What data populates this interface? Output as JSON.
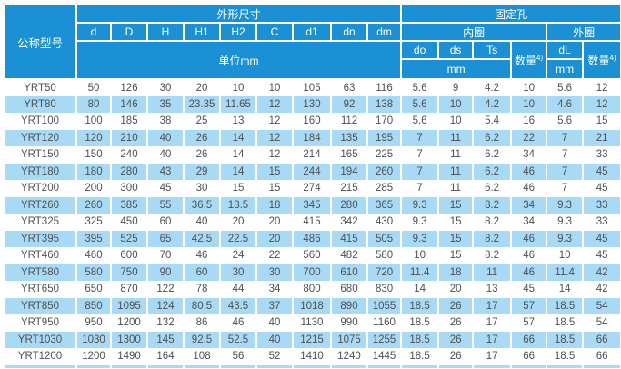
{
  "colors": {
    "header_blue": "#1b90d5",
    "stripe_blue": "#a8daf5",
    "text_dark": "#4f5052"
  },
  "table": {
    "header": {
      "model_col": "公称型号",
      "group_outer_dim": "外形尺寸",
      "group_fixing_holes": "固定孔",
      "dim_cols": [
        "d",
        "D",
        "H",
        "H1",
        "H2",
        "C",
        "d1",
        "dn",
        "dm"
      ],
      "unit_label": "单位mm",
      "inner_ring": "内圈",
      "outer_ring": "外圈",
      "col_do": "do",
      "col_ds": "ds",
      "col_ts": "Ts",
      "col_dl": "dL",
      "qty_label": "数量",
      "qty_sup": "4)",
      "mm_label_inner": "mm",
      "mm_label_outer": "mm"
    },
    "rows": [
      [
        "YRT50",
        50,
        126,
        30,
        20,
        10,
        10,
        105,
        63,
        116,
        5.6,
        9,
        4.2,
        10,
        5.6,
        12
      ],
      [
        "YRT80",
        80,
        146,
        35,
        23.35,
        11.65,
        12,
        130,
        92,
        138,
        5.6,
        10,
        4.2,
        10,
        4.6,
        12
      ],
      [
        "YRT100",
        100,
        185,
        38,
        25,
        13,
        12,
        160,
        112,
        170,
        5.6,
        10,
        5.4,
        16,
        5.6,
        15
      ],
      [
        "YRT120",
        120,
        210,
        40,
        26,
        14,
        12,
        184,
        135,
        195,
        7,
        11,
        6.2,
        22,
        7,
        21
      ],
      [
        "YRT150",
        150,
        240,
        40,
        26,
        14,
        12,
        214,
        165,
        225,
        7,
        11,
        6.2,
        34,
        7,
        33
      ],
      [
        "YRT180",
        180,
        280,
        43,
        29,
        14,
        15,
        244,
        194,
        260,
        7,
        11,
        6.2,
        46,
        7,
        45
      ],
      [
        "YRT200",
        200,
        300,
        45,
        30,
        15,
        15,
        274,
        215,
        285,
        7,
        11,
        6.2,
        46,
        7,
        45
      ],
      [
        "YRT260",
        260,
        385,
        55,
        36.5,
        18.5,
        18,
        345,
        280,
        365,
        9.3,
        15,
        8.2,
        34,
        9.3,
        33
      ],
      [
        "YRT325",
        325,
        450,
        60,
        40,
        20,
        20,
        415,
        342,
        430,
        9.3,
        15,
        8.2,
        34,
        9.3,
        33
      ],
      [
        "YRT395",
        395,
        525,
        65,
        42.5,
        22.5,
        20,
        486,
        415,
        505,
        9.3,
        15,
        8.2,
        46,
        9.3,
        45
      ],
      [
        "YRT460",
        460,
        600,
        70,
        46,
        24,
        22,
        560,
        482,
        580,
        10,
        15,
        8.2,
        46,
        10,
        45
      ],
      [
        "YRT580",
        580,
        750,
        90,
        60,
        30,
        30,
        700,
        610,
        720,
        11.4,
        18,
        11,
        46,
        11.4,
        42
      ],
      [
        "YRT650",
        650,
        870,
        122,
        78,
        44,
        34,
        800,
        680,
        830,
        14,
        20,
        13,
        45,
        14,
        42
      ],
      [
        "YRT850",
        850,
        1095,
        124,
        80.5,
        43.5,
        37,
        1018,
        890,
        1055,
        18.5,
        26,
        17,
        57,
        18.5,
        54
      ],
      [
        "YRT950",
        950,
        1200,
        132,
        86,
        46,
        40,
        1130,
        990,
        1160,
        18.5,
        26,
        17,
        57,
        18.5,
        54
      ],
      [
        "YRT1030",
        1030,
        1300,
        145,
        92.5,
        52.5,
        40,
        1215,
        1075,
        1255,
        18.5,
        26,
        17,
        66,
        18.5,
        66
      ],
      [
        "YRT1200",
        1200,
        1490,
        164,
        108,
        56,
        52,
        1410,
        1240,
        1445,
        18.5,
        26,
        17,
        66,
        18.5,
        66
      ]
    ]
  }
}
